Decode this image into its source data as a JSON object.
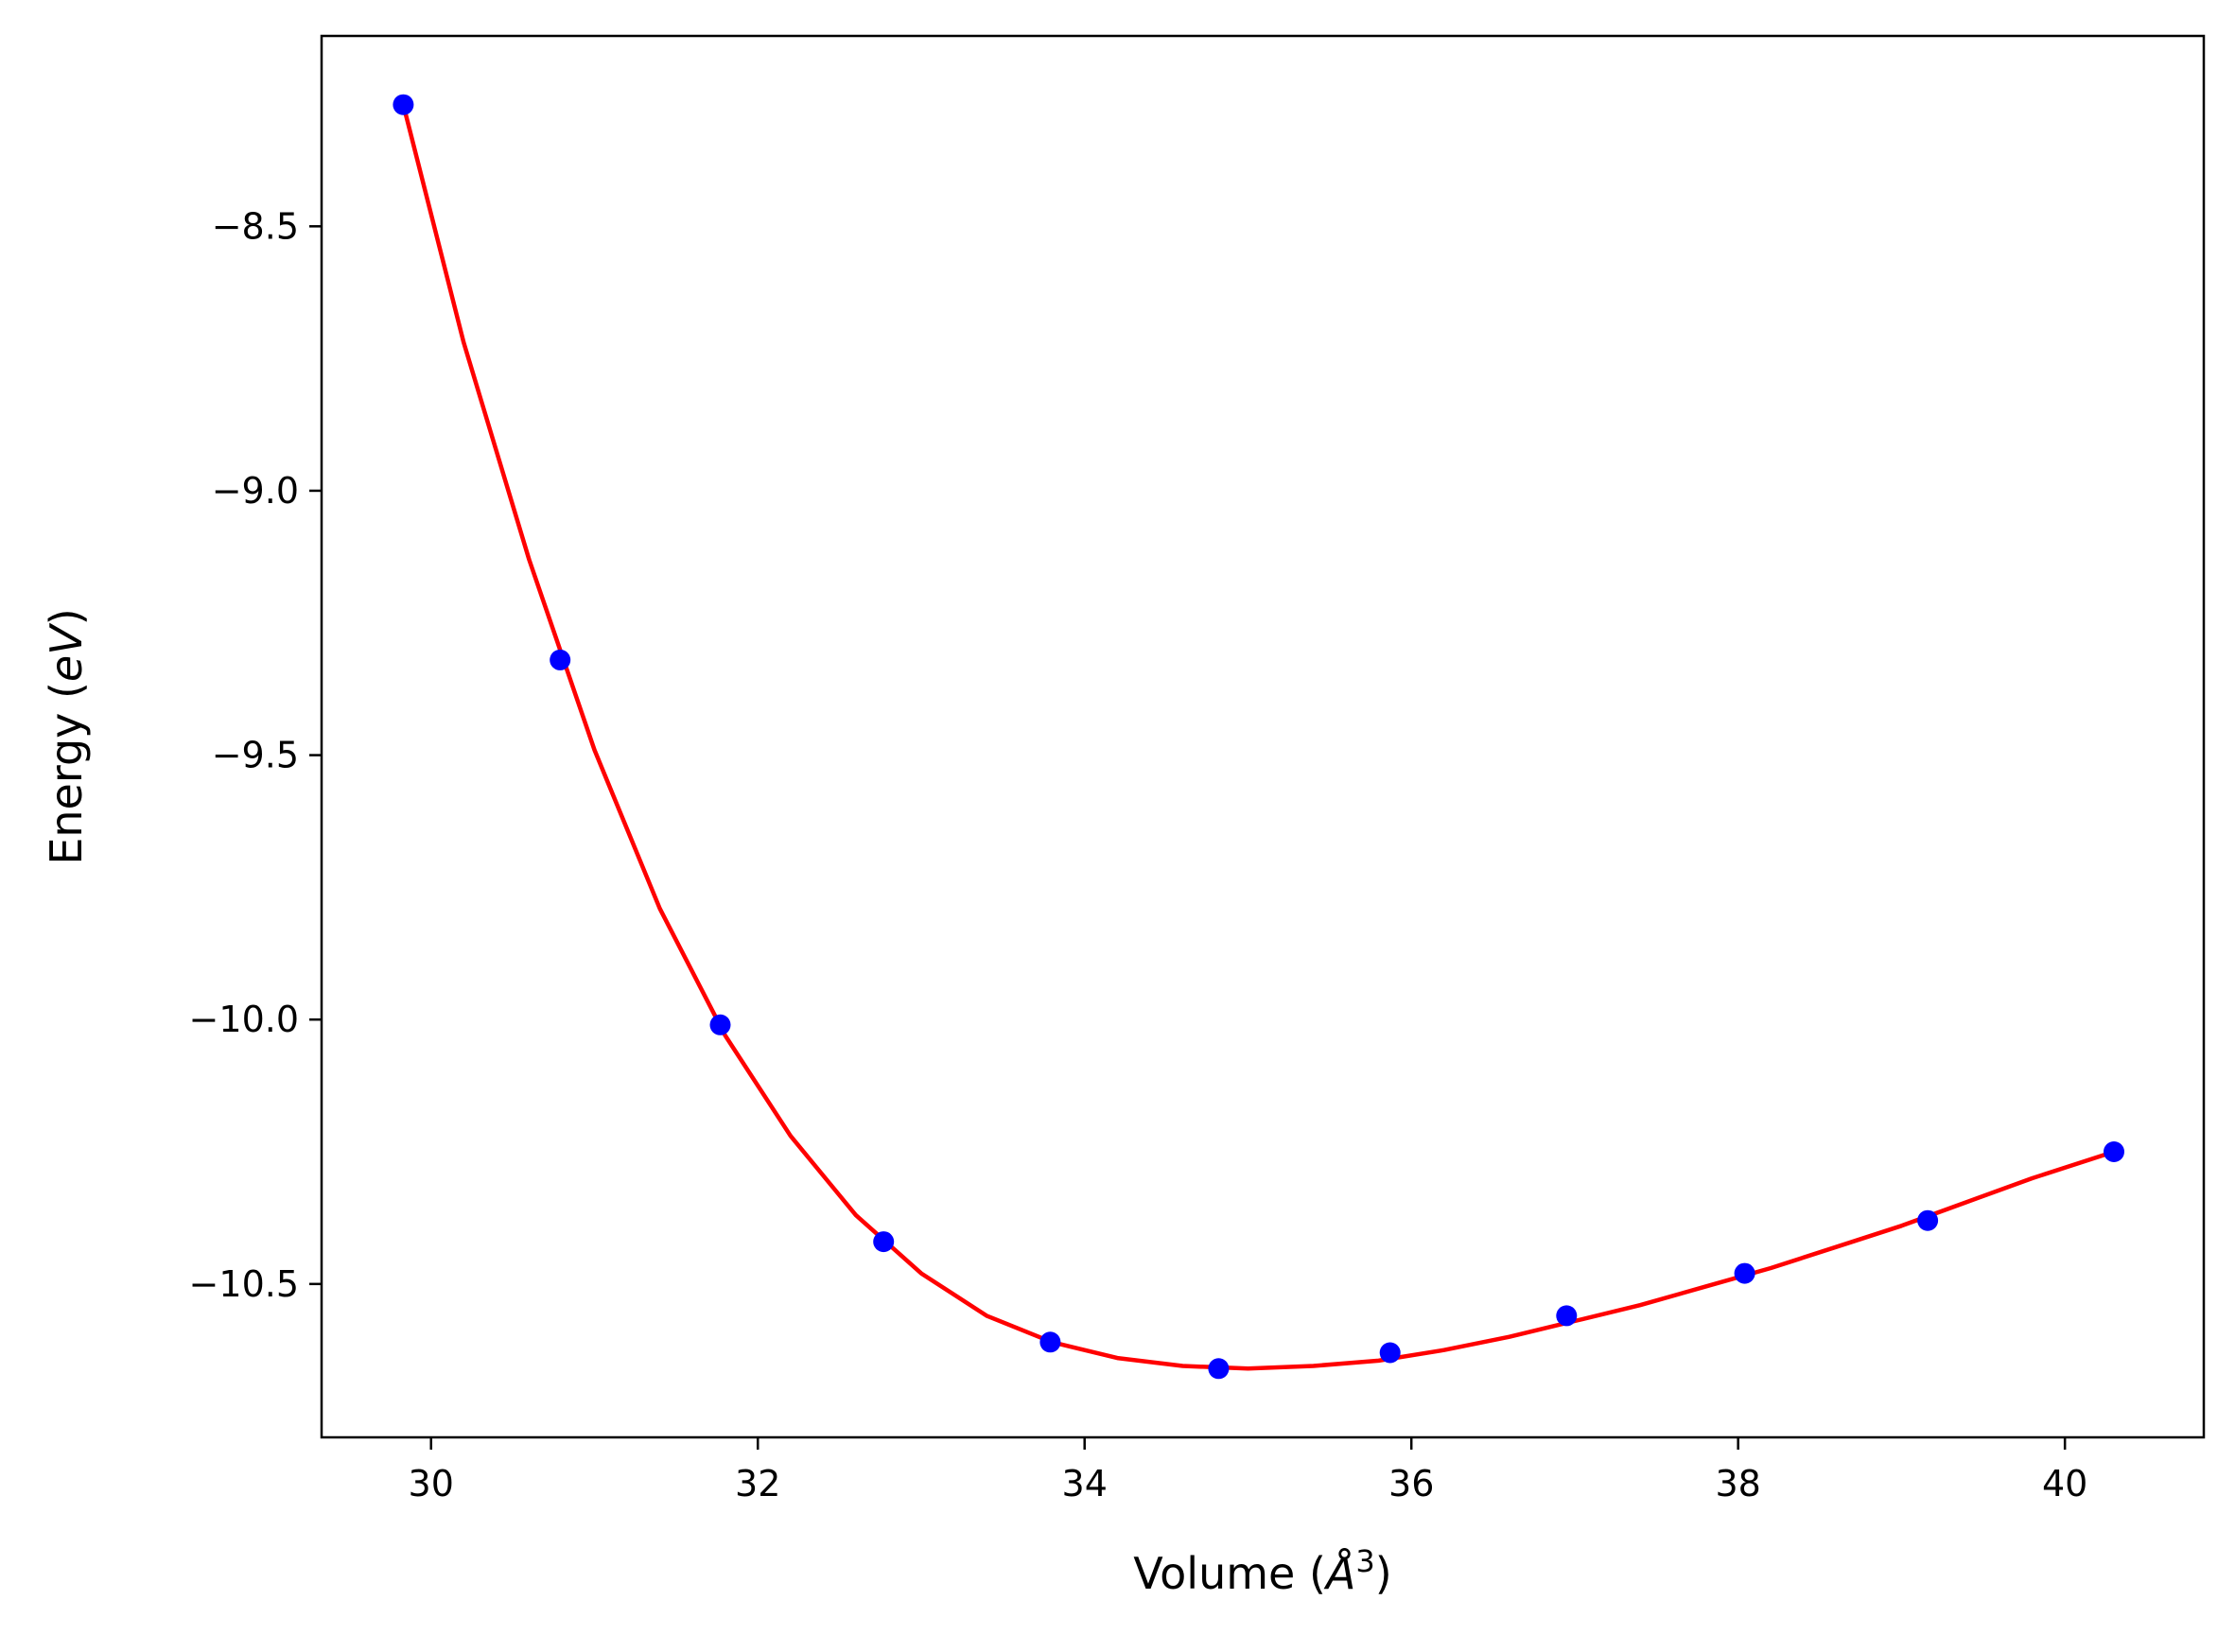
{
  "chart_data": {
    "type": "scatter",
    "title": "",
    "xlabel": "Volume",
    "xlabel_unit": "Å",
    "xlabel_exp": "3",
    "ylabel": "Energy",
    "ylabel_unit": "eV",
    "xlim": [
      29.33,
      40.85
    ],
    "ylim": [
      -10.79,
      -8.14
    ],
    "xticks": [
      30,
      32,
      34,
      36,
      38,
      40
    ],
    "xtick_labels": [
      "30",
      "32",
      "34",
      "36",
      "38",
      "40"
    ],
    "yticks": [
      -8.5,
      -9.0,
      -9.5,
      -10.0,
      -10.5
    ],
    "ytick_labels": [
      "−8.5",
      "−9.0",
      "−9.5",
      "−10.0",
      "−10.5"
    ],
    "grid": false,
    "series": [
      {
        "kind": "points",
        "color": "#0000ff",
        "x": [
          29.83,
          30.79,
          31.77,
          32.77,
          33.79,
          34.82,
          35.87,
          36.95,
          38.04,
          39.16,
          40.3
        ],
        "y": [
          -8.27,
          -9.32,
          -10.01,
          -10.42,
          -10.61,
          -10.66,
          -10.63,
          -10.56,
          -10.48,
          -10.38,
          -10.25
        ]
      },
      {
        "kind": "fit-curve",
        "color": "#ff0000",
        "x": [
          29.83,
          30.2,
          30.6,
          31.0,
          31.4,
          31.8,
          32.2,
          32.6,
          33.0,
          33.4,
          33.8,
          34.2,
          34.6,
          35.0,
          35.4,
          35.8,
          36.2,
          36.6,
          37.0,
          37.4,
          37.8,
          38.2,
          38.6,
          39.0,
          39.4,
          39.8,
          40.3
        ],
        "y": [
          -8.27,
          -8.72,
          -9.13,
          -9.49,
          -9.79,
          -10.03,
          -10.22,
          -10.37,
          -10.48,
          -10.56,
          -10.61,
          -10.64,
          -10.655,
          -10.66,
          -10.655,
          -10.645,
          -10.625,
          -10.6,
          -10.57,
          -10.54,
          -10.505,
          -10.47,
          -10.43,
          -10.39,
          -10.345,
          -10.3,
          -10.25
        ]
      }
    ]
  }
}
